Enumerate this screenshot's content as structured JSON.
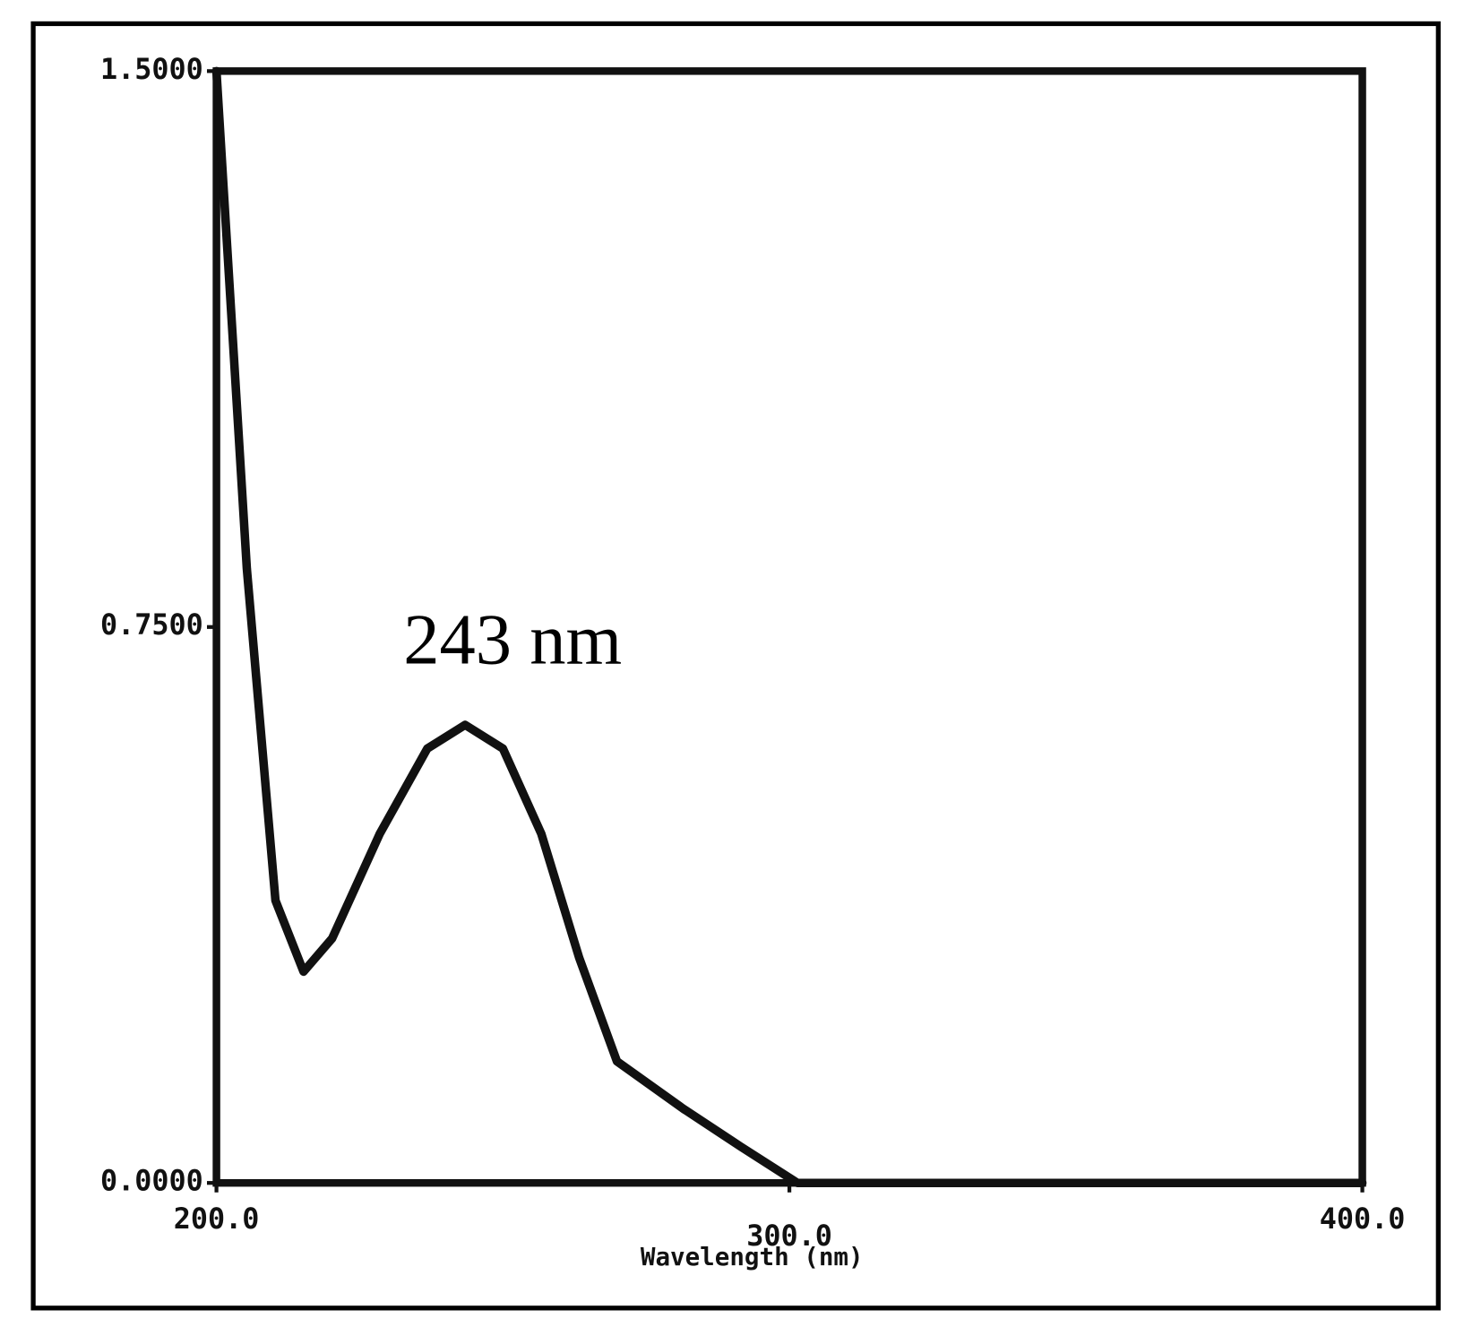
{
  "chart_data": {
    "type": "line",
    "annotation": "243 nm",
    "x_label": "Wavelength (nm)",
    "x": [
      200,
      205.3,
      210.3,
      215.2,
      220.2,
      228.5,
      236.8,
      243.4,
      250,
      256.7,
      263.3,
      269.9,
      281.5,
      291.5,
      301.4,
      400
    ],
    "series": [
      {
        "color": "#111111",
        "values": [
          1.5,
          0.829,
          0.381,
          0.285,
          0.33,
          0.471,
          0.586,
          0.618,
          0.586,
          0.471,
          0.304,
          0.164,
          0.1,
          0.049,
          0,
          0
        ]
      }
    ],
    "xlim": [
      200,
      400
    ],
    "xticks": [
      {
        "value": 200,
        "label": "200.0"
      },
      {
        "value": 300,
        "label": "300.0"
      },
      {
        "value": 400,
        "label": "400.0"
      }
    ],
    "ylim": [
      0,
      1.5
    ],
    "yticks": [
      {
        "value": 0,
        "label": "0.0000"
      },
      {
        "value": 0.75,
        "label": "0.7500"
      },
      {
        "value": 1.5,
        "label": "1.5000"
      }
    ],
    "grid": false
  }
}
